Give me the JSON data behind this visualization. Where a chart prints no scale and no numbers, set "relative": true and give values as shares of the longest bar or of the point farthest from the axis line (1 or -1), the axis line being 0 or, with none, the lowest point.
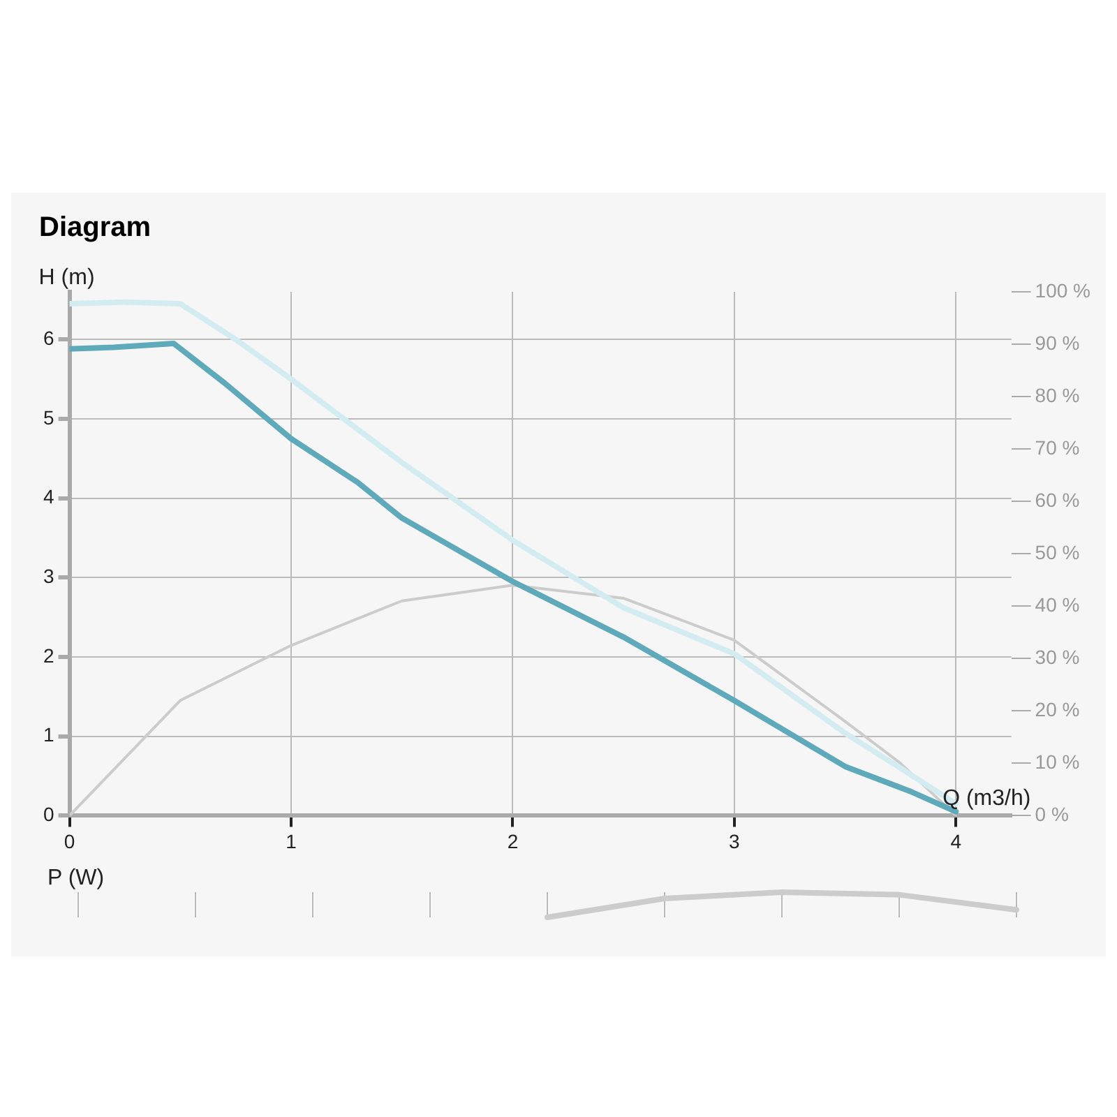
{
  "chart_data": [
    {
      "type": "line",
      "title": "Diagram",
      "xlabel": "Q (m3/h)",
      "ylabel": "H (m)",
      "xlim": [
        0,
        4.25
      ],
      "xticks": [
        0,
        1,
        2,
        3,
        4
      ],
      "ylim": [
        0,
        6.6
      ],
      "yticks": [
        0,
        1,
        2,
        3,
        4,
        5,
        6
      ],
      "y2lim": [
        0,
        100
      ],
      "y2ticks": [
        {
          "value": 0,
          "label": "0 %"
        },
        {
          "value": 10,
          "label": "10 %"
        },
        {
          "value": 20,
          "label": "20 %"
        },
        {
          "value": 30,
          "label": "30 %"
        },
        {
          "value": 40,
          "label": "40 %"
        },
        {
          "value": 50,
          "label": "50 %"
        },
        {
          "value": 60,
          "label": "60 %"
        },
        {
          "value": 70,
          "label": "70 %"
        },
        {
          "value": 80,
          "label": "80 %"
        },
        {
          "value": 90,
          "label": "90 %"
        },
        {
          "value": 100,
          "label": "100 %"
        }
      ],
      "grid": true,
      "legend": false,
      "marker": "none",
      "series": [
        {
          "color": "#d2ecf1",
          "line_style": "dotted",
          "x": [
            0,
            0.25,
            0.5,
            0.75,
            1,
            1.5,
            2,
            2.5,
            3,
            3.5,
            3.75,
            4
          ],
          "values": [
            6.45,
            6.47,
            6.45,
            6.0,
            5.5,
            4.45,
            3.47,
            2.62,
            2.04,
            1.04,
            0.6,
            0.15
          ]
        },
        {
          "color": "#5ea9ba",
          "line_style": "solid",
          "x": [
            0,
            0.2,
            0.47,
            0.7,
            1,
            1.3,
            1.5,
            2,
            2.5,
            3,
            3.5,
            3.8,
            4
          ],
          "values": [
            5.88,
            5.9,
            5.95,
            5.45,
            4.75,
            4.2,
            3.75,
            2.95,
            2.25,
            1.45,
            0.62,
            0.3,
            0.05
          ]
        },
        {
          "color": "#cccccc",
          "line_style": "solid",
          "axis": "y2",
          "x": [
            0,
            0.5,
            1,
            1.5,
            2,
            2.5,
            3,
            3.5,
            3.75,
            4
          ],
          "values": [
            0,
            22,
            32.5,
            41,
            44,
            41.5,
            33.5,
            18,
            10,
            0
          ]
        }
      ]
    },
    {
      "type": "line",
      "ylabel": "P (W)",
      "relative": true,
      "categories": [
        null,
        null,
        null,
        null,
        null,
        null,
        null,
        null,
        null
      ],
      "grid": "x",
      "legend": false,
      "marker": "none",
      "series": [
        {
          "color": "#cccccc",
          "values": [
            null,
            null,
            null,
            null,
            0,
            0.75,
            1,
            0.9,
            0.3
          ]
        }
      ]
    }
  ]
}
